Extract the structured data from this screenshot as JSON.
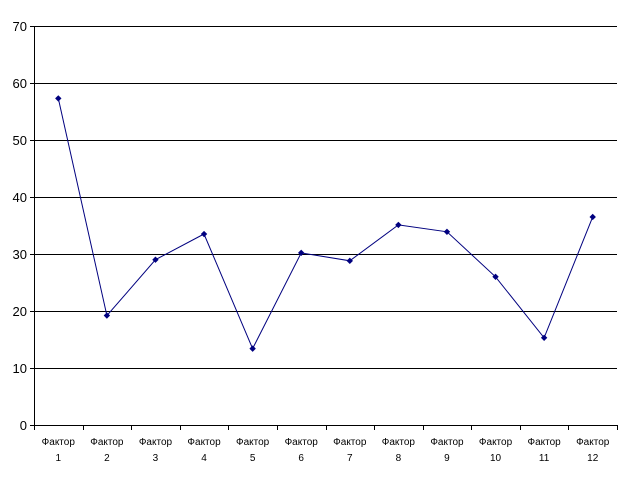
{
  "chart_data": {
    "type": "line",
    "title": "",
    "xlabel": "",
    "ylabel": "",
    "categories": [
      [
        "Фактор",
        "1"
      ],
      [
        "Фактор",
        "2"
      ],
      [
        "Фактор",
        "3"
      ],
      [
        "Фактор",
        "4"
      ],
      [
        "Фактор",
        "5"
      ],
      [
        "Фактор",
        "6"
      ],
      [
        "Фактор",
        "7"
      ],
      [
        "Фактор",
        "8"
      ],
      [
        "Фактор",
        "9"
      ],
      [
        "Фактор",
        "10"
      ],
      [
        "Фактор",
        "11"
      ],
      [
        "Фактор",
        "12"
      ]
    ],
    "series": [
      {
        "values": [
          57.3,
          19.2,
          29.0,
          33.5,
          13.4,
          30.2,
          28.8,
          35.1,
          33.9,
          26.0,
          15.3,
          36.5
        ]
      }
    ],
    "ylim": [
      0,
      70
    ],
    "yticks": [
      0,
      10,
      20,
      30,
      40,
      50,
      60,
      70
    ],
    "grid": true,
    "legend": "none",
    "colors": {
      "line": "#00007f",
      "marker": "#00007f",
      "grid": "#000000",
      "axis": "#000000"
    }
  }
}
